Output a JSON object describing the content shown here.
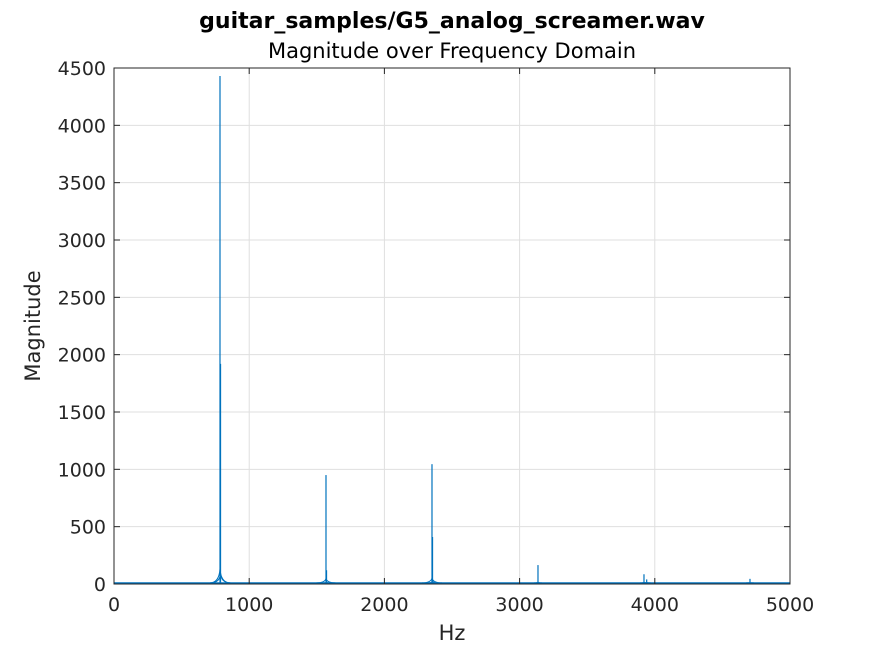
{
  "chart_data": {
    "type": "line",
    "title": "guitar_samples/G5_analog_screamer.wav",
    "subtitle": "Magnitude over Frequency Domain",
    "xlabel": "Hz",
    "ylabel": "Magnitude",
    "xlim": [
      0,
      5000
    ],
    "ylim": [
      0,
      4500
    ],
    "xticks": [
      0,
      1000,
      2000,
      3000,
      4000,
      5000
    ],
    "yticks": [
      0,
      500,
      1000,
      1500,
      2000,
      2500,
      3000,
      3500,
      4000,
      4500
    ],
    "xtick_labels": [
      "0",
      "1000",
      "2000",
      "3000",
      "4000",
      "5000"
    ],
    "ytick_labels": [
      "0",
      "500",
      "1000",
      "1500",
      "2000",
      "2500",
      "3000",
      "3500",
      "4000",
      "4500"
    ],
    "grid": true,
    "line_color": "#0072bd",
    "noise_floor": 10,
    "peaks": [
      {
        "x": 784,
        "y": 4430
      },
      {
        "x": 788,
        "y": 1920
      },
      {
        "x": 1568,
        "y": 950
      },
      {
        "x": 1572,
        "y": 120
      },
      {
        "x": 2352,
        "y": 1045
      },
      {
        "x": 2356,
        "y": 410
      },
      {
        "x": 3136,
        "y": 165
      },
      {
        "x": 3920,
        "y": 85
      },
      {
        "x": 3940,
        "y": 40
      },
      {
        "x": 4704,
        "y": 45
      }
    ]
  }
}
